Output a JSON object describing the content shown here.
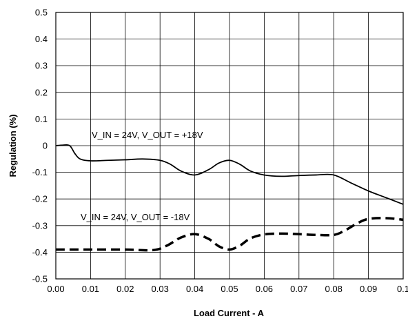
{
  "chart_data": {
    "type": "line",
    "title": "",
    "xlabel": "Load Current - A",
    "ylabel": "Regulation (%)",
    "xlim": [
      0,
      0.1
    ],
    "ylim": [
      -0.5,
      0.5
    ],
    "grid": true,
    "x_ticks": [
      "0.00",
      "0.01",
      "0.02",
      "0.03",
      "0.04",
      "0.05",
      "0.06",
      "0.07",
      "0.08",
      "0.09",
      "0.1"
    ],
    "y_ticks": [
      "0.5",
      "0.4",
      "0.3",
      "0.2",
      "0.1",
      "0",
      "-0.1",
      "-0.2",
      "-0.3",
      "-0.4",
      "-0.5"
    ],
    "annotations": [
      "V_IN = 24V, V_OUT = +18V",
      "V_IN = 24V, V_OUT = -18V"
    ],
    "series": [
      {
        "style": "solid",
        "points": [
          [
            0.0,
            0.0
          ],
          [
            0.002,
            0.002
          ],
          [
            0.004,
            0.0
          ],
          [
            0.0055,
            -0.03
          ],
          [
            0.007,
            -0.05
          ],
          [
            0.01,
            -0.057
          ],
          [
            0.015,
            -0.055
          ],
          [
            0.02,
            -0.053
          ],
          [
            0.025,
            -0.05
          ],
          [
            0.03,
            -0.055
          ],
          [
            0.033,
            -0.07
          ],
          [
            0.036,
            -0.095
          ],
          [
            0.04,
            -0.11
          ],
          [
            0.044,
            -0.09
          ],
          [
            0.047,
            -0.065
          ],
          [
            0.05,
            -0.055
          ],
          [
            0.053,
            -0.07
          ],
          [
            0.056,
            -0.095
          ],
          [
            0.06,
            -0.11
          ],
          [
            0.065,
            -0.115
          ],
          [
            0.07,
            -0.112
          ],
          [
            0.075,
            -0.11
          ],
          [
            0.08,
            -0.11
          ],
          [
            0.085,
            -0.14
          ],
          [
            0.09,
            -0.17
          ],
          [
            0.095,
            -0.195
          ],
          [
            0.1,
            -0.22
          ]
        ]
      },
      {
        "style": "dashed",
        "points": [
          [
            0.0,
            -0.39
          ],
          [
            0.01,
            -0.39
          ],
          [
            0.02,
            -0.39
          ],
          [
            0.028,
            -0.392
          ],
          [
            0.032,
            -0.375
          ],
          [
            0.036,
            -0.345
          ],
          [
            0.04,
            -0.332
          ],
          [
            0.044,
            -0.35
          ],
          [
            0.047,
            -0.378
          ],
          [
            0.05,
            -0.39
          ],
          [
            0.053,
            -0.375
          ],
          [
            0.056,
            -0.348
          ],
          [
            0.06,
            -0.333
          ],
          [
            0.065,
            -0.33
          ],
          [
            0.07,
            -0.332
          ],
          [
            0.075,
            -0.335
          ],
          [
            0.08,
            -0.335
          ],
          [
            0.083,
            -0.32
          ],
          [
            0.087,
            -0.29
          ],
          [
            0.09,
            -0.275
          ],
          [
            0.095,
            -0.272
          ],
          [
            0.1,
            -0.278
          ]
        ]
      }
    ]
  }
}
